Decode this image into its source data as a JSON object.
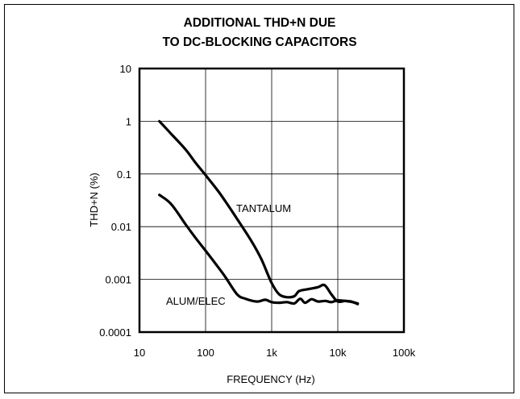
{
  "chart_data": {
    "type": "line",
    "title_lines": [
      "ADDITIONAL THD+N DUE",
      "TO DC-BLOCKING CAPACITORS"
    ],
    "xlabel": "FREQUENCY (Hz)",
    "ylabel": "THD+N (%)",
    "xscale": "log",
    "yscale": "log",
    "xlim": [
      10,
      100000
    ],
    "ylim": [
      0.0001,
      10
    ],
    "x_ticks": [
      10,
      100,
      1000,
      10000,
      100000
    ],
    "x_tick_labels": [
      "10",
      "100",
      "1k",
      "10k",
      "100k"
    ],
    "y_ticks": [
      10,
      1,
      0.1,
      0.01,
      0.001,
      0.0001
    ],
    "y_tick_labels": [
      "10",
      "1",
      "0.1",
      "0.01",
      "0.001",
      "0.0001"
    ],
    "grid": true,
    "annotations": [
      "TANTALUM",
      "ALUM/ELEC"
    ],
    "series": [
      {
        "name": "TANTALUM",
        "points": [
          [
            20,
            1.0
          ],
          [
            30,
            0.58
          ],
          [
            50,
            0.29
          ],
          [
            70,
            0.165
          ],
          [
            100,
            0.095
          ],
          [
            150,
            0.05
          ],
          [
            200,
            0.03
          ],
          [
            300,
            0.014
          ],
          [
            500,
            0.0052
          ],
          [
            700,
            0.0024
          ],
          [
            1000,
            0.00085
          ],
          [
            1300,
            0.00052
          ],
          [
            1700,
            0.00046
          ],
          [
            2200,
            0.00048
          ],
          [
            2600,
            0.0006
          ],
          [
            3500,
            0.00065
          ],
          [
            5000,
            0.00071
          ],
          [
            6300,
            0.00078
          ],
          [
            8000,
            0.00052
          ],
          [
            10000,
            0.00038
          ],
          [
            13000,
            0.00039
          ],
          [
            16000,
            0.00038
          ],
          [
            20000,
            0.00034
          ]
        ]
      },
      {
        "name": "ALUM/ELEC",
        "points": [
          [
            20,
            0.04
          ],
          [
            30,
            0.027
          ],
          [
            50,
            0.011
          ],
          [
            70,
            0.0062
          ],
          [
            100,
            0.0035
          ],
          [
            150,
            0.0018
          ],
          [
            200,
            0.0011
          ],
          [
            300,
            0.00052
          ],
          [
            400,
            0.00043
          ],
          [
            600,
            0.00038
          ],
          [
            800,
            0.00041
          ],
          [
            1000,
            0.00037
          ],
          [
            1300,
            0.00036
          ],
          [
            1700,
            0.00037
          ],
          [
            2200,
            0.00035
          ],
          [
            2700,
            0.00043
          ],
          [
            3200,
            0.00036
          ],
          [
            4000,
            0.00042
          ],
          [
            5000,
            0.00038
          ],
          [
            6500,
            0.00039
          ],
          [
            8000,
            0.00037
          ],
          [
            10000,
            0.0004
          ],
          [
            15000,
            0.00038
          ],
          [
            20000,
            0.00035
          ]
        ]
      }
    ]
  }
}
